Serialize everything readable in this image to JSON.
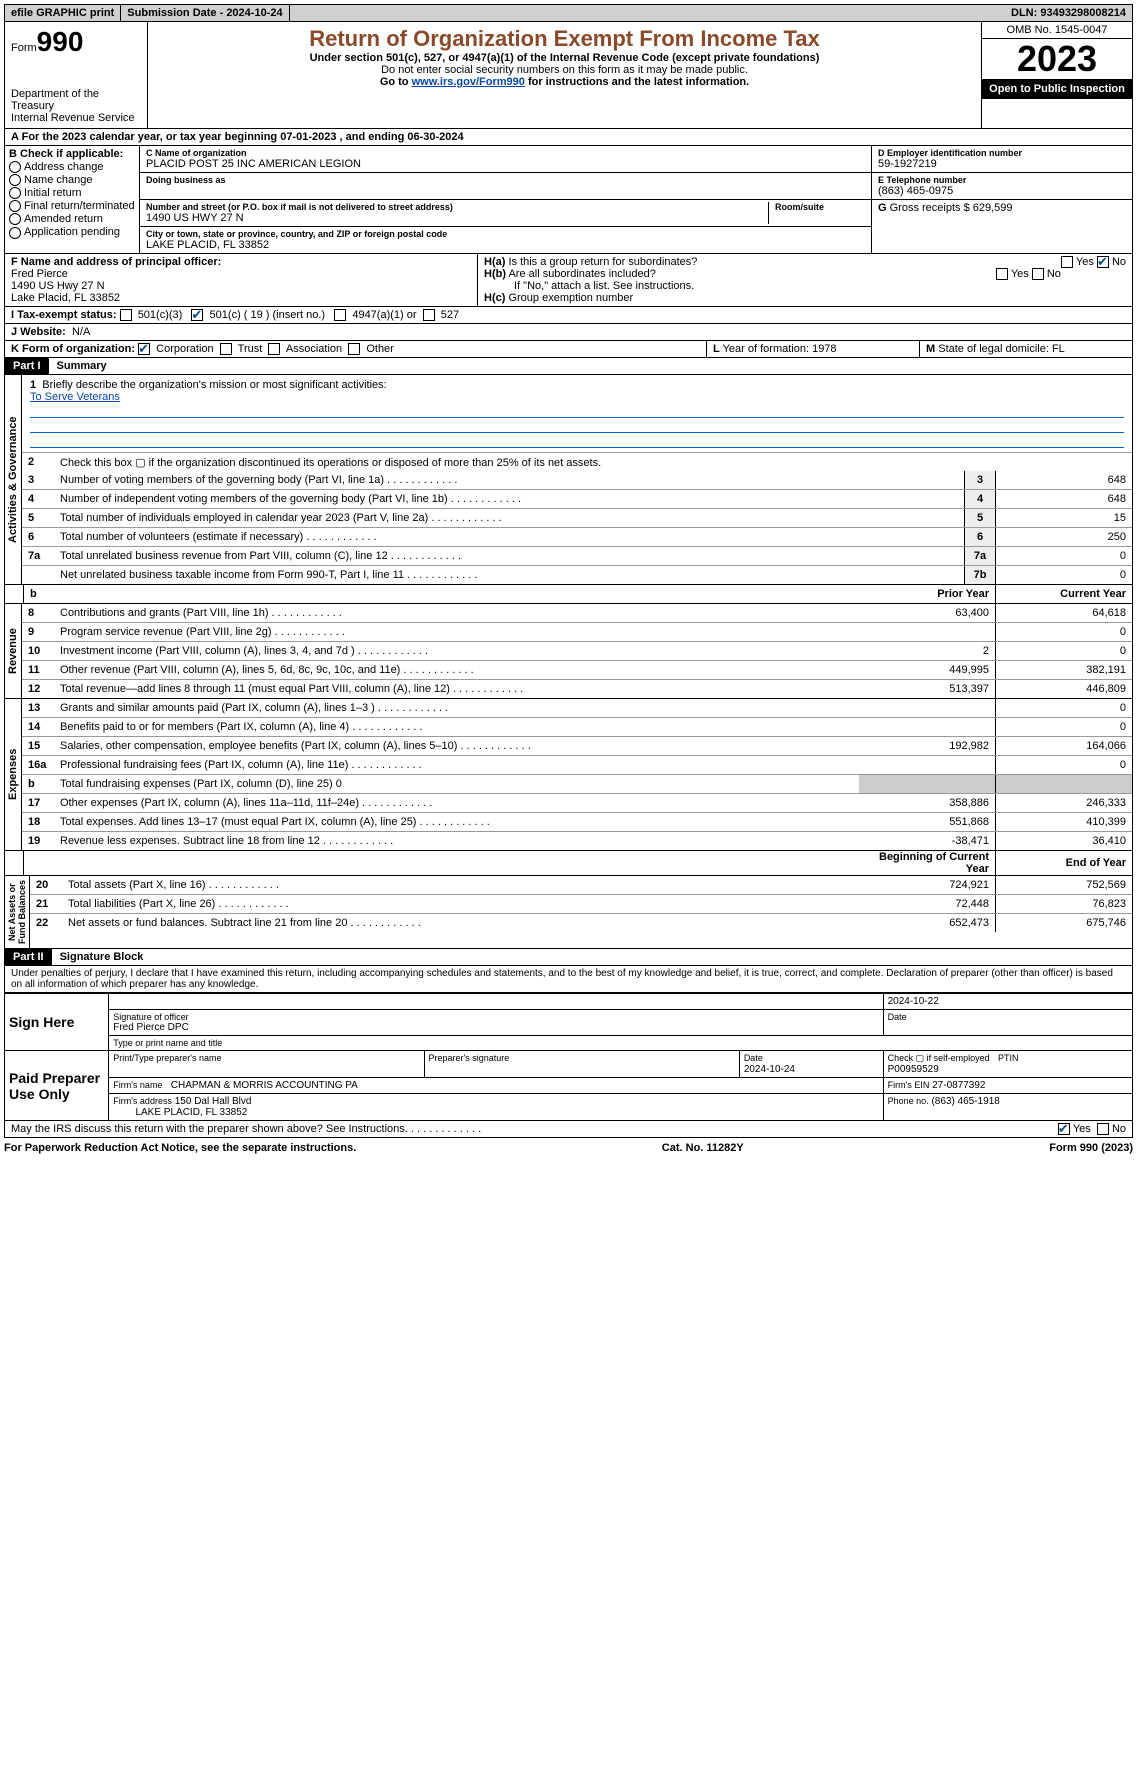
{
  "top": {
    "efile": "efile GRAPHIC print",
    "submission": "Submission Date - 2024-10-24",
    "dln": "DLN: 93493298008214"
  },
  "header": {
    "form_label": "Form",
    "form_num": "990",
    "title": "Return of Organization Exempt From Income Tax",
    "subtitle": "Under section 501(c), 527, or 4947(a)(1) of the Internal Revenue Code (except private foundations)",
    "ssn_note": "Do not enter social security numbers on this form as it may be made public.",
    "goto_prefix": "Go to ",
    "goto_link": "www.irs.gov/Form990",
    "goto_suffix": " for instructions and the latest information.",
    "dept": "Department of the Treasury",
    "irs": "Internal Revenue Service",
    "omb": "OMB No. 1545-0047",
    "year": "2023",
    "open": "Open to Public Inspection"
  },
  "line_a": "For the 2023 calendar year, or tax year beginning 07-01-2023    , and ending 06-30-2024",
  "box_b": {
    "label": "B Check if applicable:",
    "items": [
      "Address change",
      "Name change",
      "Initial return",
      "Final return/terminated",
      "Amended return",
      "Application pending"
    ]
  },
  "box_c": {
    "name_label": "C Name of organization",
    "name": "PLACID POST 25 INC AMERICAN LEGION",
    "dba_label": "Doing business as",
    "street_label": "Number and street (or P.O. box if mail is not delivered to street address)",
    "room_label": "Room/suite",
    "street": "1490 US HWY 27 N",
    "city_label": "City or town, state or province, country, and ZIP or foreign postal code",
    "city": "LAKE PLACID, FL  33852"
  },
  "box_d": {
    "label": "D Employer identification number",
    "value": "59-1927219"
  },
  "box_e": {
    "label": "E Telephone number",
    "value": "(863) 465-0975"
  },
  "box_g": {
    "label": "G",
    "text": "Gross receipts $ 629,599"
  },
  "box_f": {
    "label": "F  Name and address of principal officer:",
    "name": "Fred Pierce",
    "addr1": "1490 US Hwy 27 N",
    "addr2": "Lake Placid, FL  33852"
  },
  "box_h": {
    "a_label": "H(a)",
    "a_text": "Is this a group return for subordinates?",
    "b_label": "H(b)",
    "b_text": "Are all subordinates included?",
    "b_note": "If \"No,\" attach a list. See instructions.",
    "c_label": "H(c)",
    "c_text": "Group exemption number"
  },
  "row_i": {
    "label": "I  Tax-exempt status:",
    "opt1": "501(c)(3)",
    "opt2": "501(c) ( 19 ) (insert no.)",
    "opt3": "4947(a)(1) or",
    "opt4": "527"
  },
  "row_j": {
    "label": "J   Website:",
    "value": "N/A"
  },
  "row_k": {
    "label": "K Form of organization:",
    "opts": [
      "Corporation",
      "Trust",
      "Association",
      "Other"
    ]
  },
  "row_l": {
    "label": "L",
    "text": "Year of formation: 1978"
  },
  "row_m": {
    "label": "M",
    "text": "State of legal domicile: FL"
  },
  "part1": {
    "header": "Part I",
    "title": "Summary"
  },
  "summary": {
    "q1_label": "1",
    "q1_text": "Briefly describe the organization's mission or most significant activities:",
    "q1_answer": "To Serve Veterans",
    "q2": "Check this box ▢ if the organization discontinued its operations or disposed of more than 25% of its net assets.",
    "lines": [
      {
        "n": "3",
        "d": "Number of voting members of the governing body (Part VI, line 1a)",
        "box": "3",
        "v": "648"
      },
      {
        "n": "4",
        "d": "Number of independent voting members of the governing body (Part VI, line 1b)",
        "box": "4",
        "v": "648"
      },
      {
        "n": "5",
        "d": "Total number of individuals employed in calendar year 2023 (Part V, line 2a)",
        "box": "5",
        "v": "15"
      },
      {
        "n": "6",
        "d": "Total number of volunteers (estimate if necessary)",
        "box": "6",
        "v": "250"
      },
      {
        "n": "7a",
        "d": "Total unrelated business revenue from Part VIII, column (C), line 12",
        "box": "7a",
        "v": "0"
      },
      {
        "n": "",
        "d": "Net unrelated business taxable income from Form 990-T, Part I, line 11",
        "box": "7b",
        "v": "0"
      }
    ],
    "col_prior": "Prior Year",
    "col_current": "Current Year",
    "col_begin": "Beginning of Current Year",
    "col_end": "End of Year",
    "revenue": [
      {
        "n": "8",
        "d": "Contributions and grants (Part VIII, line 1h)",
        "p": "63,400",
        "c": "64,618"
      },
      {
        "n": "9",
        "d": "Program service revenue (Part VIII, line 2g)",
        "p": "",
        "c": "0"
      },
      {
        "n": "10",
        "d": "Investment income (Part VIII, column (A), lines 3, 4, and 7d )",
        "p": "2",
        "c": "0"
      },
      {
        "n": "11",
        "d": "Other revenue (Part VIII, column (A), lines 5, 6d, 8c, 9c, 10c, and 11e)",
        "p": "449,995",
        "c": "382,191"
      },
      {
        "n": "12",
        "d": "Total revenue—add lines 8 through 11 (must equal Part VIII, column (A), line 12)",
        "p": "513,397",
        "c": "446,809"
      }
    ],
    "expenses": [
      {
        "n": "13",
        "d": "Grants and similar amounts paid (Part IX, column (A), lines 1–3 )",
        "p": "",
        "c": "0"
      },
      {
        "n": "14",
        "d": "Benefits paid to or for members (Part IX, column (A), line 4)",
        "p": "",
        "c": "0"
      },
      {
        "n": "15",
        "d": "Salaries, other compensation, employee benefits (Part IX, column (A), lines 5–10)",
        "p": "192,982",
        "c": "164,066"
      },
      {
        "n": "16a",
        "d": "Professional fundraising fees (Part IX, column (A), line 11e)",
        "p": "",
        "c": "0"
      },
      {
        "n": "b",
        "d": "Total fundraising expenses (Part IX, column (D), line 25) 0",
        "shaded": true
      },
      {
        "n": "17",
        "d": "Other expenses (Part IX, column (A), lines 11a–11d, 11f–24e)",
        "p": "358,886",
        "c": "246,333"
      },
      {
        "n": "18",
        "d": "Total expenses. Add lines 13–17 (must equal Part IX, column (A), line 25)",
        "p": "551,868",
        "c": "410,399"
      },
      {
        "n": "19",
        "d": "Revenue less expenses. Subtract line 18 from line 12",
        "p": "-38,471",
        "c": "36,410"
      }
    ],
    "netassets": [
      {
        "n": "20",
        "d": "Total assets (Part X, line 16)",
        "p": "724,921",
        "c": "752,569"
      },
      {
        "n": "21",
        "d": "Total liabilities (Part X, line 26)",
        "p": "72,448",
        "c": "76,823"
      },
      {
        "n": "22",
        "d": "Net assets or fund balances. Subtract line 21 from line 20",
        "p": "652,473",
        "c": "675,746"
      }
    ]
  },
  "part2": {
    "header": "Part II",
    "title": "Signature Block"
  },
  "perjury": "Under penalties of perjury, I declare that I have examined this return, including accompanying schedules and statements, and to the best of my knowledge and belief, it is true, correct, and complete. Declaration of preparer (other than officer) is based on all information of which preparer has any knowledge.",
  "sign": {
    "here": "Sign Here",
    "date1": "2024-10-22",
    "sig_label": "Signature of officer",
    "officer": "Fred Pierce  DPC",
    "type_label": "Type or print name and title",
    "date_label": "Date"
  },
  "preparer": {
    "label": "Paid Preparer Use Only",
    "print_label": "Print/Type preparer's name",
    "sig_label": "Preparer's signature",
    "date_label": "Date",
    "date": "2024-10-24",
    "check_label": "Check ▢ if self-employed",
    "ptin_label": "PTIN",
    "ptin": "P00959529",
    "firm_name_label": "Firm's name",
    "firm_name": "CHAPMAN & MORRIS ACCOUNTING PA",
    "firm_ein_label": "Firm's EIN",
    "firm_ein": "27-0877392",
    "firm_addr_label": "Firm's address",
    "firm_addr1": "150 Dal Hall Blvd",
    "firm_addr2": "LAKE PLACID, FL  33852",
    "phone_label": "Phone no.",
    "phone": "(863) 465-1918"
  },
  "discuss": "May the IRS discuss this return with the preparer shown above? See Instructions.",
  "footer": {
    "left": "For Paperwork Reduction Act Notice, see the separate instructions.",
    "mid": "Cat. No. 11282Y",
    "right": "Form 990 (2023)"
  },
  "yes": "Yes",
  "no": "No"
}
